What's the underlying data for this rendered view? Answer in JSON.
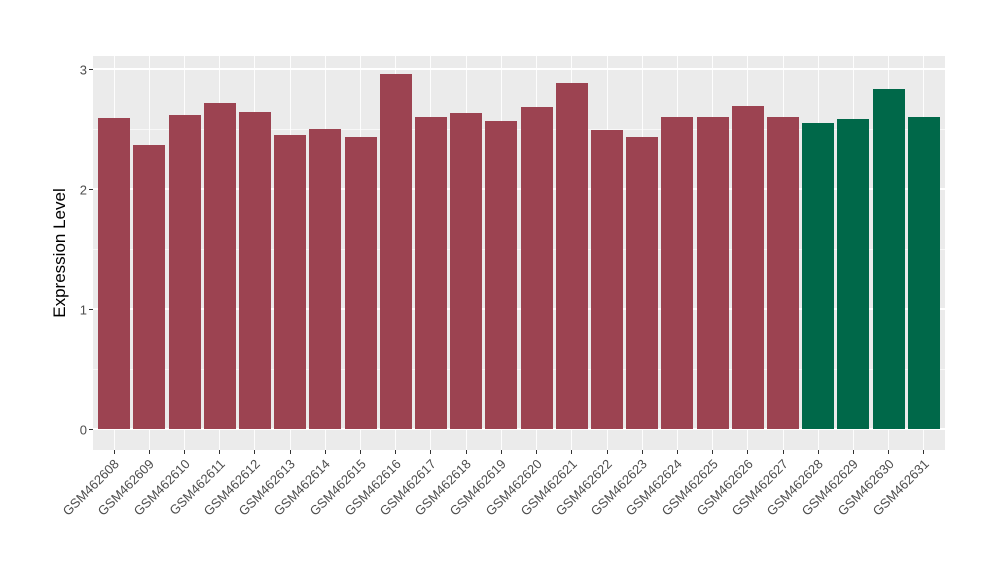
{
  "chart_data": {
    "type": "bar",
    "title": "",
    "xlabel": "",
    "ylabel": "Expression Level",
    "ylim": [
      0,
      3
    ],
    "y_ticks": [
      0,
      1,
      2,
      3
    ],
    "y_minor_ticks": [
      0.5,
      1.5,
      2.5
    ],
    "grid": "on",
    "legend_position": "none",
    "panel_background": "#EBEBEB",
    "gridline_color": "#FFFFFF",
    "tick_label_color": "#4D4D4D",
    "categories": [
      "GSM462608",
      "GSM462609",
      "GSM462610",
      "GSM462611",
      "GSM462612",
      "GSM462613",
      "GSM462614",
      "GSM462615",
      "GSM462616",
      "GSM462617",
      "GSM462618",
      "GSM462619",
      "GSM462620",
      "GSM462621",
      "GSM462622",
      "GSM462623",
      "GSM462624",
      "GSM462625",
      "GSM462626",
      "GSM462627",
      "GSM462628",
      "GSM462629",
      "GSM462630",
      "GSM462631"
    ],
    "values": [
      2.59,
      2.37,
      2.62,
      2.72,
      2.64,
      2.45,
      2.5,
      2.43,
      2.96,
      2.6,
      2.63,
      2.57,
      2.68,
      2.88,
      2.49,
      2.43,
      2.6,
      2.6,
      2.69,
      2.6,
      2.55,
      2.58,
      2.83,
      2.6
    ],
    "colors": [
      "#9C4351",
      "#9C4351",
      "#9C4351",
      "#9C4351",
      "#9C4351",
      "#9C4351",
      "#9C4351",
      "#9C4351",
      "#9C4351",
      "#9C4351",
      "#9C4351",
      "#9C4351",
      "#9C4351",
      "#9C4351",
      "#9C4351",
      "#9C4351",
      "#9C4351",
      "#9C4351",
      "#9C4351",
      "#9C4351",
      "#006849",
      "#006849",
      "#006849",
      "#006849"
    ]
  }
}
